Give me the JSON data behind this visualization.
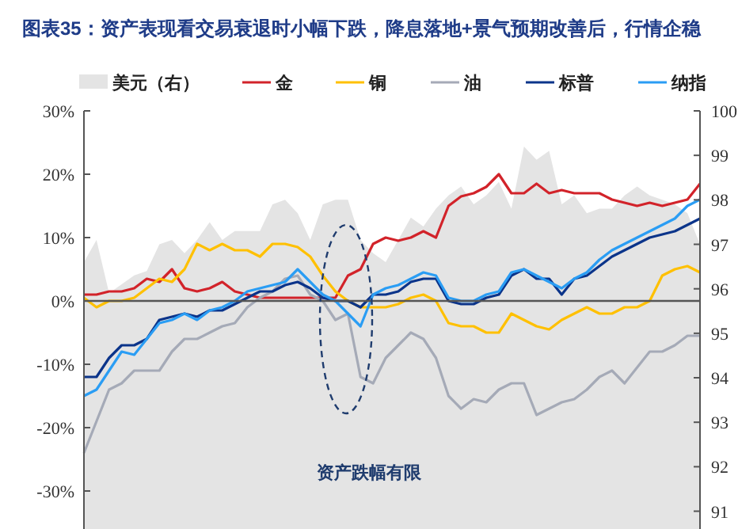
{
  "chart_data": {
    "type": "line",
    "title": "图表35：资产表现看交易衰退时小幅下跌，降息落地+景气预期改善后，行情企稳",
    "categories": [
      null,
      null,
      null,
      null,
      null,
      null,
      null,
      null,
      null,
      null,
      null,
      null,
      null,
      null,
      null,
      null,
      null,
      null,
      null,
      null,
      null,
      null,
      null,
      null,
      null,
      null,
      null,
      null,
      null,
      null,
      null,
      null,
      null,
      null,
      null,
      null,
      null,
      null,
      null,
      null,
      null,
      null,
      null,
      null,
      null,
      null,
      null,
      null,
      null,
      null
    ],
    "series": [
      {
        "name": "美元（右）",
        "type": "area",
        "axis": "y2",
        "color": "#e4e4e4",
        "values": [
          96.6,
          97.1,
          95.9,
          96.1,
          96.3,
          96.4,
          97.0,
          97.1,
          96.8,
          97.1,
          97.5,
          97.1,
          97.3,
          97.3,
          97.3,
          97.9,
          98.0,
          97.7,
          97.1,
          97.9,
          98.0,
          98.0,
          97.1,
          96.8,
          96.6,
          97.1,
          97.6,
          97.4,
          97.8,
          98.1,
          98.3,
          97.9,
          98.1,
          98.4,
          97.8,
          99.2,
          98.9,
          99.1,
          97.9,
          98.1,
          97.7,
          97.8,
          97.8,
          98.1,
          98.3,
          98.1,
          98.0,
          97.9,
          97.7,
          97.0
        ]
      },
      {
        "name": "金",
        "color": "#d2232a",
        "values": [
          1,
          1,
          1.5,
          1.5,
          2,
          3.5,
          3,
          5,
          2,
          1.5,
          2,
          3,
          1.5,
          1,
          0.5,
          0.5,
          0.5,
          0.5,
          0.5,
          0.5,
          0.5,
          4,
          5,
          9,
          10,
          9.5,
          10,
          11,
          10,
          15,
          16.5,
          17,
          18,
          20,
          17,
          17,
          18.5,
          17,
          17.5,
          17,
          17,
          17,
          16,
          15.5,
          15,
          15.5,
          15,
          15.5,
          16,
          18.5
        ]
      },
      {
        "name": "铜",
        "color": "#ffc000",
        "values": [
          0.5,
          -1,
          0,
          0,
          0.5,
          2,
          3.5,
          3,
          5,
          9,
          8,
          9,
          8,
          8,
          7,
          9,
          9,
          8.5,
          7,
          4,
          1.5,
          0,
          -1,
          -1,
          -1,
          -0.5,
          0.5,
          1,
          0,
          -3.5,
          -4,
          -4,
          -5,
          -5,
          -2,
          -3,
          -4,
          -4.5,
          -3,
          -2,
          -1,
          -2,
          -2,
          -1,
          -1,
          0,
          4,
          5,
          5.5,
          4.5
        ]
      },
      {
        "name": "油",
        "color": "#a5aab7",
        "values": [
          -24,
          -19,
          -14,
          -13,
          -11,
          -11,
          -11,
          -8,
          -6,
          -6,
          -5,
          -4,
          -3.5,
          -1,
          0.5,
          1.5,
          3.5,
          4,
          1,
          0,
          -3,
          -2,
          -12,
          -13,
          -9,
          -7,
          -5,
          -6,
          -9,
          -15,
          -17,
          -15.5,
          -16,
          -14,
          -13,
          -13,
          -18,
          -17,
          -16,
          -15.5,
          -14,
          -12,
          -11,
          -13,
          -10.5,
          -8,
          -8,
          -7,
          -5.5,
          -5.5
        ]
      },
      {
        "name": "标普",
        "color": "#0b348a",
        "values": [
          -12,
          -12,
          -9,
          -7,
          -7,
          -6,
          -3,
          -2.5,
          -2,
          -2.5,
          -1.5,
          -1.5,
          -0.5,
          0.5,
          1.5,
          1.5,
          2.5,
          3,
          2,
          0.5,
          0,
          0,
          -1,
          1,
          1,
          1.5,
          3,
          3.5,
          3.5,
          0,
          -0.5,
          -0.5,
          0.5,
          1,
          4,
          5,
          3.5,
          3.5,
          1,
          3.5,
          4,
          5.5,
          7,
          8,
          9,
          10,
          10.5,
          11,
          12,
          13
        ]
      },
      {
        "name": "纳指",
        "color": "#2a9df4",
        "values": [
          -15,
          -14,
          -11,
          -8,
          -8.5,
          -6,
          -3.5,
          -3,
          -2,
          -3,
          -1.5,
          -1,
          0,
          1.5,
          2,
          2.5,
          3,
          5,
          3,
          1,
          0,
          -2,
          -4,
          1,
          2,
          2.5,
          3.5,
          4.5,
          4,
          0.5,
          0,
          0,
          1,
          1.5,
          4.5,
          5,
          4,
          3,
          2,
          3.5,
          4.5,
          6.5,
          8,
          9,
          10,
          11,
          12,
          13,
          15,
          16
        ]
      }
    ],
    "ylim": [
      -36,
      30
    ],
    "yticks": [
      {
        "value": -30,
        "label": "-30%"
      },
      {
        "value": -20,
        "label": "-20%"
      },
      {
        "value": -10,
        "label": "-10%"
      },
      {
        "value": 0,
        "label": "0%"
      },
      {
        "value": 10,
        "label": "10%"
      },
      {
        "value": 20,
        "label": "20%"
      },
      {
        "value": 30,
        "label": "30%"
      }
    ],
    "y2lim": [
      90.6,
      100
    ],
    "y2ticks": [
      91,
      92,
      93,
      94,
      95,
      96,
      97,
      98,
      99,
      100
    ],
    "annotations": [
      "资产跌幅有限"
    ],
    "ref_lines": [
      {
        "axis": "y",
        "value": 0,
        "color": "#555555"
      }
    ],
    "legend": "top",
    "tick_labels": "y"
  }
}
